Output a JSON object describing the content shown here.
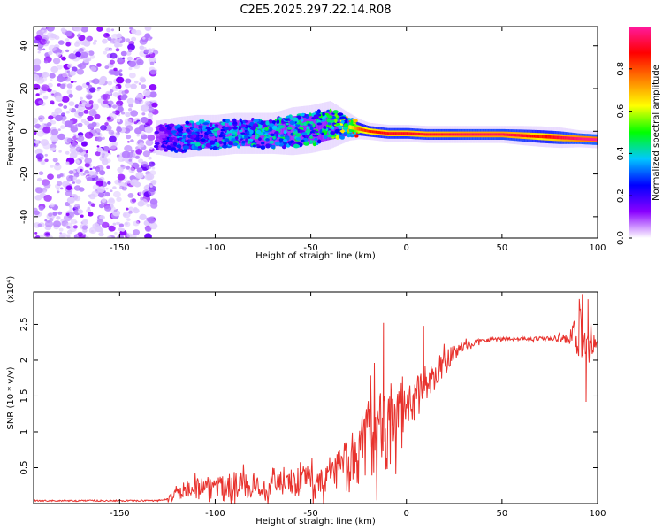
{
  "title": "C2E5.2025.297.22.14.R08",
  "chart_data": [
    {
      "type": "heatmap",
      "name": "spectrogram",
      "xlabel": "Height of straight line (km)",
      "ylabel": "Frequency (Hz)",
      "xlim": [
        -195,
        100
      ],
      "ylim": [
        -50,
        49
      ],
      "xticks": [
        "-150",
        "-100",
        "-50",
        "0",
        "50",
        "100"
      ],
      "xtick_values": [
        -150,
        -100,
        -50,
        0,
        50,
        100
      ],
      "yticks": [
        "-40",
        "-20",
        "0",
        "20",
        "40"
      ],
      "ytick_values": [
        -40,
        -20,
        0,
        20,
        40
      ],
      "noise_region": {
        "x_from": -195,
        "x_to": -131,
        "freq_from": -50,
        "freq_to": 49
      },
      "ridge": {
        "x": [
          -130,
          -120,
          -110,
          -100,
          -90,
          -80,
          -70,
          -60,
          -50,
          -40,
          -30,
          -25,
          -20,
          -10,
          0,
          10,
          20,
          30,
          40,
          50,
          60,
          70,
          80,
          90,
          100
        ],
        "freq": [
          -3,
          -3,
          -2,
          -2,
          -1,
          -1,
          -1,
          0,
          1,
          3,
          2,
          1,
          0,
          -1,
          -1,
          -1.5,
          -1.5,
          -1.5,
          -1.5,
          -1.5,
          -2,
          -2.5,
          -3,
          -3.5,
          -4
        ],
        "amplitude": [
          0.15,
          0.3,
          0.35,
          0.35,
          0.38,
          0.38,
          0.4,
          0.4,
          0.4,
          0.45,
          0.6,
          0.8,
          0.85,
          0.9,
          0.9,
          0.92,
          0.92,
          0.95,
          0.95,
          0.95,
          0.92,
          0.85,
          0.92,
          0.98,
          1.0
        ],
        "width_hz": [
          5,
          6,
          6,
          6,
          6,
          6,
          6,
          7,
          7,
          7,
          4,
          3,
          2.5,
          2.5,
          2.5,
          2.5,
          2.5,
          2.5,
          2.5,
          2.5,
          2.8,
          3,
          3,
          2.5,
          2.5
        ]
      },
      "colorbar": {
        "label": "Normalized spectral amplitude",
        "range": [
          0,
          1
        ],
        "ticks": [
          "0.0",
          "0.2",
          "0.4",
          "0.6",
          "0.8"
        ],
        "tick_values": [
          0.0,
          0.2,
          0.4,
          0.6,
          0.8
        ],
        "colors": [
          "#ffffff",
          "#8a00ff",
          "#0000ff",
          "#00c8ff",
          "#00ff00",
          "#ffff00",
          "#ff8000",
          "#ff0000",
          "#ff1aa0"
        ]
      }
    },
    {
      "type": "line",
      "name": "snr",
      "xlabel": "Height of straight line (km)",
      "ylabel": "SNR (10 * v/v)",
      "scale_label": "(x10⁴)",
      "color": "#e8322d",
      "xlim": [
        -195,
        100
      ],
      "ylim": [
        0,
        2.95
      ],
      "xticks": [
        "-150",
        "-100",
        "-50",
        "0",
        "50",
        "100"
      ],
      "xtick_values": [
        -150,
        -100,
        -50,
        0,
        50,
        100
      ],
      "yticks": [
        "0.5",
        "1",
        "1.5",
        "2",
        "2.5"
      ],
      "ytick_values": [
        0.5,
        1,
        1.5,
        2,
        2.5
      ],
      "trend": {
        "x": [
          -195,
          -130,
          -125,
          -120,
          -110,
          -100,
          -90,
          -80,
          -70,
          -60,
          -50,
          -40,
          -35,
          -30,
          -25,
          -20,
          -15,
          -10,
          -5,
          0,
          5,
          10,
          15,
          20,
          25,
          30,
          40,
          50,
          60,
          70,
          80,
          85,
          90,
          95,
          100
        ],
        "y": [
          0.03,
          0.03,
          0.05,
          0.15,
          0.22,
          0.25,
          0.25,
          0.25,
          0.25,
          0.28,
          0.32,
          0.38,
          0.45,
          0.55,
          0.7,
          0.9,
          1.0,
          1.05,
          1.2,
          1.35,
          1.5,
          1.65,
          1.8,
          1.95,
          2.1,
          2.2,
          2.28,
          2.3,
          2.3,
          2.3,
          2.3,
          2.3,
          2.28,
          2.25,
          2.25
        ],
        "noise": [
          0.01,
          0.01,
          0.03,
          0.12,
          0.18,
          0.2,
          0.2,
          0.2,
          0.2,
          0.22,
          0.25,
          0.3,
          0.35,
          0.45,
          0.55,
          0.6,
          0.7,
          0.75,
          0.55,
          0.35,
          0.3,
          0.3,
          0.25,
          0.2,
          0.12,
          0.06,
          0.04,
          0.03,
          0.03,
          0.03,
          0.05,
          0.1,
          0.5,
          0.35,
          0.03
        ]
      },
      "spikes": [
        {
          "x": -12,
          "y": 2.52
        },
        {
          "x": 9,
          "y": 2.48
        },
        {
          "x": 92,
          "y": 2.92
        },
        {
          "x": 94,
          "y": 1.42
        },
        {
          "x": 95,
          "y": 2.85
        }
      ]
    }
  ]
}
